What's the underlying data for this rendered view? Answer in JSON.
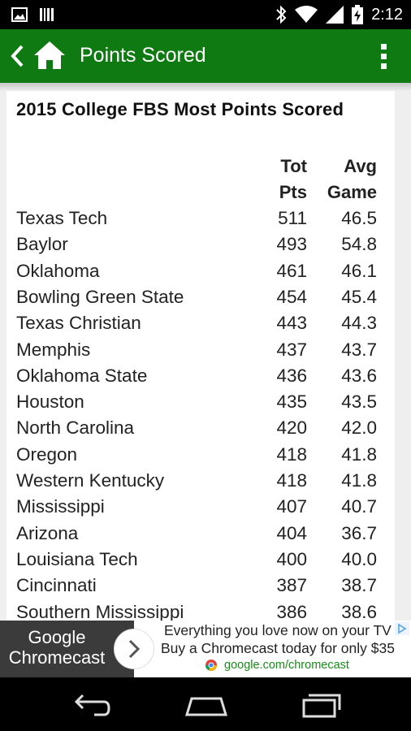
{
  "status_bar": {
    "time": "2:12",
    "left_icons": [
      "image-notification-icon",
      "barcode-notification-icon"
    ],
    "right_icons": [
      "bluetooth-icon",
      "wifi-icon",
      "signal-icon",
      "battery-charging-icon"
    ]
  },
  "app_bar": {
    "title": "Points Scored",
    "icons": [
      "back-icon",
      "home-icon",
      "overflow-menu-icon"
    ]
  },
  "page": {
    "heading": "2015 College FBS Most Points Scored",
    "columns": {
      "tot_line1": "Tot",
      "tot_line2": "Pts",
      "avg_line1": "Avg",
      "avg_line2": "Game"
    },
    "rows": [
      {
        "team": "Texas Tech",
        "tot": "511",
        "avg": "46.5"
      },
      {
        "team": "Baylor",
        "tot": "493",
        "avg": "54.8"
      },
      {
        "team": "Oklahoma",
        "tot": "461",
        "avg": "46.1"
      },
      {
        "team": "Bowling Green State",
        "tot": "454",
        "avg": "45.4"
      },
      {
        "team": "Texas Christian",
        "tot": "443",
        "avg": "44.3"
      },
      {
        "team": "Memphis",
        "tot": "437",
        "avg": "43.7"
      },
      {
        "team": "Oklahoma State",
        "tot": "436",
        "avg": "43.6"
      },
      {
        "team": "Houston",
        "tot": "435",
        "avg": "43.5"
      },
      {
        "team": "North Carolina",
        "tot": "420",
        "avg": "42.0"
      },
      {
        "team": "Oregon",
        "tot": "418",
        "avg": "41.8"
      },
      {
        "team": "Western Kentucky",
        "tot": "418",
        "avg": "41.8"
      },
      {
        "team": "Mississippi",
        "tot": "407",
        "avg": "40.7"
      },
      {
        "team": "Arizona",
        "tot": "404",
        "avg": "36.7"
      },
      {
        "team": "Louisiana Tech",
        "tot": "400",
        "avg": "40.0"
      },
      {
        "team": "Cincinnati",
        "tot": "387",
        "avg": "38.7"
      },
      {
        "team": "Southern Mississippi",
        "tot": "386",
        "avg": "38.6"
      }
    ]
  },
  "ad": {
    "brand_line1": "Google",
    "brand_line2": "Chromecast",
    "line1": "Everything you love now on your TV",
    "line2": "Buy a Chromecast today for only $35",
    "url": "google.com/chromecast"
  },
  "nav_bar": {
    "buttons": [
      "back-nav-icon",
      "home-nav-icon",
      "recents-nav-icon"
    ]
  },
  "colors": {
    "app_bar": "#0f7a12",
    "status_bar": "#000000",
    "ad_url": "#1a8a1a",
    "background": "#efefef"
  }
}
